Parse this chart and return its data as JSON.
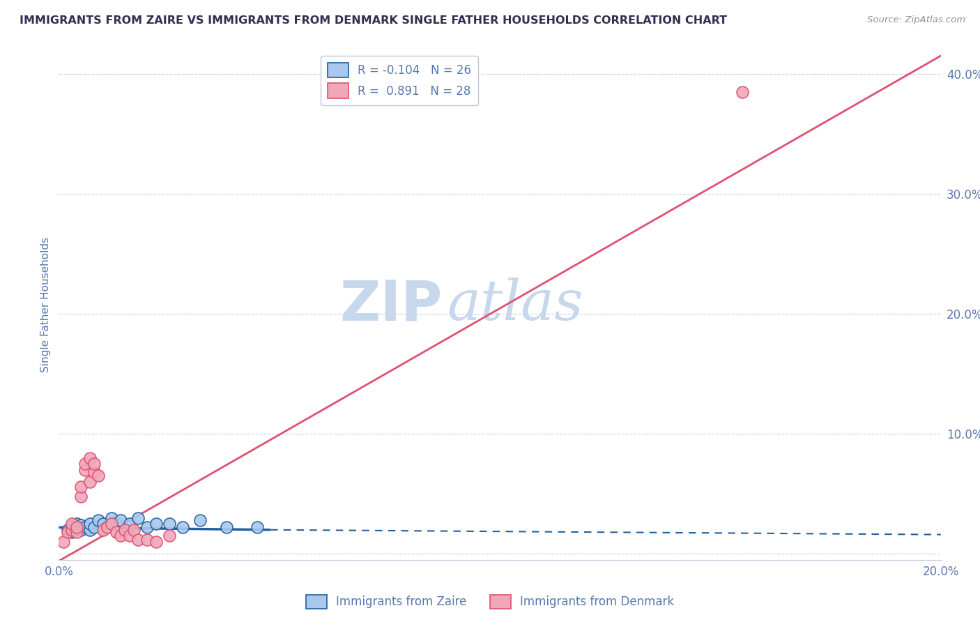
{
  "title": "IMMIGRANTS FROM ZAIRE VS IMMIGRANTS FROM DENMARK SINGLE FATHER HOUSEHOLDS CORRELATION CHART",
  "source": "Source: ZipAtlas.com",
  "ylabel": "Single Father Households",
  "xlim": [
    0.0,
    0.2
  ],
  "ylim": [
    -0.005,
    0.42
  ],
  "r_zaire": -0.104,
  "n_zaire": 26,
  "r_denmark": 0.891,
  "n_denmark": 28,
  "legend_label_zaire": "Immigrants from Zaire",
  "legend_label_denmark": "Immigrants from Denmark",
  "color_zaire": "#A8C8F0",
  "color_denmark": "#F0A8B8",
  "color_zaire_line": "#2060A0",
  "color_denmark_line": "#E05070",
  "watermark_zip": "ZIP",
  "watermark_atlas": "atlas",
  "watermark_color": "#C8D8EC",
  "title_color": "#303050",
  "source_color": "#909090",
  "axis_label_color": "#5878B0",
  "tick_color": "#5878B0",
  "grid_color": "#C8D0DC",
  "background_color": "#FFFFFF",
  "denmark_line_x0": 0.0,
  "denmark_line_y0": -0.006,
  "denmark_line_x1": 0.2,
  "denmark_line_y1": 0.415,
  "zaire_line_x0": 0.0,
  "zaire_line_y0": 0.022,
  "zaire_line_x1": 0.048,
  "zaire_line_y1": 0.02,
  "zaire_line_dash_x0": 0.048,
  "zaire_line_dash_y0": 0.02,
  "zaire_line_dash_x1": 0.2,
  "zaire_line_dash_y1": 0.016,
  "zaire_x": [
    0.002,
    0.003,
    0.003,
    0.004,
    0.004,
    0.005,
    0.005,
    0.006,
    0.007,
    0.007,
    0.008,
    0.009,
    0.01,
    0.011,
    0.012,
    0.013,
    0.014,
    0.016,
    0.018,
    0.02,
    0.022,
    0.025,
    0.028,
    0.032,
    0.038,
    0.045
  ],
  "zaire_y": [
    0.02,
    0.018,
    0.023,
    0.021,
    0.025,
    0.02,
    0.024,
    0.022,
    0.02,
    0.025,
    0.022,
    0.028,
    0.025,
    0.022,
    0.03,
    0.025,
    0.028,
    0.025,
    0.03,
    0.022,
    0.025,
    0.025,
    0.022,
    0.028,
    0.022,
    0.022
  ],
  "denmark_x": [
    0.001,
    0.002,
    0.003,
    0.003,
    0.004,
    0.004,
    0.005,
    0.005,
    0.006,
    0.006,
    0.007,
    0.007,
    0.008,
    0.008,
    0.009,
    0.01,
    0.011,
    0.012,
    0.013,
    0.014,
    0.015,
    0.016,
    0.017,
    0.018,
    0.02,
    0.022,
    0.025,
    0.155
  ],
  "denmark_y": [
    0.01,
    0.018,
    0.02,
    0.025,
    0.018,
    0.022,
    0.048,
    0.056,
    0.07,
    0.075,
    0.06,
    0.08,
    0.068,
    0.075,
    0.065,
    0.02,
    0.022,
    0.025,
    0.018,
    0.015,
    0.02,
    0.015,
    0.02,
    0.012,
    0.012,
    0.01,
    0.015,
    0.385
  ]
}
